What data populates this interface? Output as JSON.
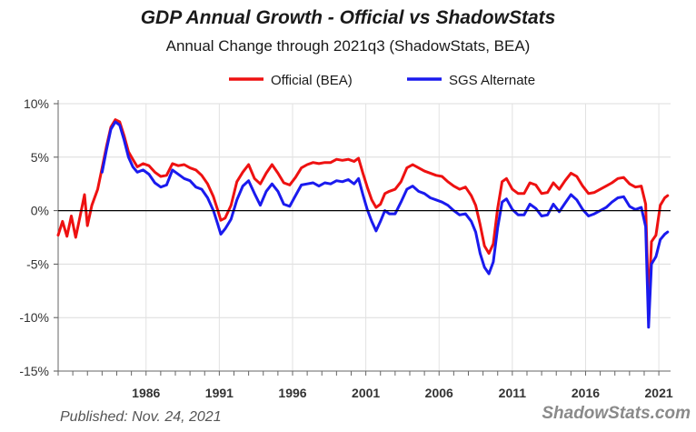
{
  "chart_data": {
    "type": "line",
    "title": "GDP Annual Growth - Official vs ShadowStats",
    "subtitle": "Annual Change through 2021q3  (ShadowStats, BEA)",
    "footer": "Published: Nov. 24, 2021",
    "brand": "ShadowStats.com",
    "xlim": [
      1980,
      2021.8
    ],
    "ylim": [
      -15,
      10
    ],
    "yticks": [
      10,
      5,
      0,
      -5,
      -10,
      -15
    ],
    "ytick_labels": [
      "10%",
      "5%",
      "0%",
      "-5%",
      "-10%",
      "-15%"
    ],
    "xticks": [
      1986,
      1991,
      1996,
      2001,
      2006,
      2011,
      2016,
      2021
    ],
    "xtick_labels": [
      "1986",
      "1991",
      "1996",
      "2001",
      "2006",
      "2011",
      "2016",
      "2021"
    ],
    "grid": true,
    "legend_position": "top",
    "series": [
      {
        "name": "Official (BEA)",
        "color": "#ee1111",
        "points": [
          [
            1980.0,
            -2.3
          ],
          [
            1980.3,
            -1.0
          ],
          [
            1980.6,
            -2.4
          ],
          [
            1980.9,
            -0.5
          ],
          [
            1981.2,
            -2.5
          ],
          [
            1981.5,
            -0.5
          ],
          [
            1981.8,
            1.5
          ],
          [
            1982.0,
            -1.4
          ],
          [
            1982.3,
            0.5
          ],
          [
            1982.7,
            2.0
          ],
          [
            1983.0,
            4.0
          ],
          [
            1983.3,
            6.0
          ],
          [
            1983.6,
            7.8
          ],
          [
            1983.9,
            8.5
          ],
          [
            1984.2,
            8.3
          ],
          [
            1984.5,
            7.0
          ],
          [
            1984.8,
            5.5
          ],
          [
            1985.1,
            4.8
          ],
          [
            1985.4,
            4.1
          ],
          [
            1985.8,
            4.4
          ],
          [
            1986.2,
            4.2
          ],
          [
            1986.6,
            3.6
          ],
          [
            1987.0,
            3.2
          ],
          [
            1987.4,
            3.3
          ],
          [
            1987.8,
            4.4
          ],
          [
            1988.2,
            4.2
          ],
          [
            1988.6,
            4.3
          ],
          [
            1989.0,
            4.0
          ],
          [
            1989.4,
            3.8
          ],
          [
            1989.8,
            3.3
          ],
          [
            1990.2,
            2.5
          ],
          [
            1990.6,
            1.3
          ],
          [
            1990.9,
            0.0
          ],
          [
            1991.1,
            -0.9
          ],
          [
            1991.4,
            -0.7
          ],
          [
            1991.8,
            0.5
          ],
          [
            1992.2,
            2.7
          ],
          [
            1992.6,
            3.6
          ],
          [
            1993.0,
            4.3
          ],
          [
            1993.4,
            3.0
          ],
          [
            1993.8,
            2.5
          ],
          [
            1994.2,
            3.5
          ],
          [
            1994.6,
            4.3
          ],
          [
            1995.0,
            3.5
          ],
          [
            1995.4,
            2.6
          ],
          [
            1995.8,
            2.4
          ],
          [
            1996.2,
            3.1
          ],
          [
            1996.6,
            4.0
          ],
          [
            1997.0,
            4.3
          ],
          [
            1997.4,
            4.5
          ],
          [
            1997.8,
            4.4
          ],
          [
            1998.2,
            4.5
          ],
          [
            1998.6,
            4.5
          ],
          [
            1999.0,
            4.8
          ],
          [
            1999.4,
            4.7
          ],
          [
            1999.8,
            4.8
          ],
          [
            2000.2,
            4.6
          ],
          [
            2000.5,
            4.9
          ],
          [
            2000.8,
            3.5
          ],
          [
            2001.1,
            2.2
          ],
          [
            2001.4,
            1.0
          ],
          [
            2001.7,
            0.3
          ],
          [
            2002.0,
            0.6
          ],
          [
            2002.3,
            1.6
          ],
          [
            2002.6,
            1.8
          ],
          [
            2003.0,
            2.0
          ],
          [
            2003.4,
            2.7
          ],
          [
            2003.8,
            4.0
          ],
          [
            2004.2,
            4.3
          ],
          [
            2004.6,
            4.0
          ],
          [
            2005.0,
            3.7
          ],
          [
            2005.4,
            3.5
          ],
          [
            2005.8,
            3.3
          ],
          [
            2006.2,
            3.2
          ],
          [
            2006.6,
            2.7
          ],
          [
            2007.0,
            2.3
          ],
          [
            2007.4,
            2.0
          ],
          [
            2007.8,
            2.2
          ],
          [
            2008.2,
            1.4
          ],
          [
            2008.5,
            0.5
          ],
          [
            2008.8,
            -1.3
          ],
          [
            2009.1,
            -3.3
          ],
          [
            2009.4,
            -4.0
          ],
          [
            2009.7,
            -3.1
          ],
          [
            2010.0,
            0.2
          ],
          [
            2010.3,
            2.7
          ],
          [
            2010.6,
            3.0
          ],
          [
            2011.0,
            2.0
          ],
          [
            2011.4,
            1.6
          ],
          [
            2011.8,
            1.6
          ],
          [
            2012.2,
            2.6
          ],
          [
            2012.6,
            2.4
          ],
          [
            2013.0,
            1.6
          ],
          [
            2013.4,
            1.7
          ],
          [
            2013.8,
            2.6
          ],
          [
            2014.2,
            2.0
          ],
          [
            2014.6,
            2.8
          ],
          [
            2015.0,
            3.5
          ],
          [
            2015.4,
            3.2
          ],
          [
            2015.8,
            2.3
          ],
          [
            2016.2,
            1.6
          ],
          [
            2016.6,
            1.7
          ],
          [
            2017.0,
            2.0
          ],
          [
            2017.4,
            2.3
          ],
          [
            2017.8,
            2.6
          ],
          [
            2018.2,
            3.0
          ],
          [
            2018.6,
            3.1
          ],
          [
            2019.0,
            2.5
          ],
          [
            2019.4,
            2.2
          ],
          [
            2019.8,
            2.3
          ],
          [
            2020.1,
            0.6
          ],
          [
            2020.3,
            -9.1
          ],
          [
            2020.5,
            -2.9
          ],
          [
            2020.8,
            -2.3
          ],
          [
            2021.1,
            0.5
          ],
          [
            2021.4,
            1.2
          ],
          [
            2021.6,
            1.4
          ]
        ]
      },
      {
        "name": "SGS Alternate",
        "color": "#1a1aee",
        "points": [
          [
            1983.0,
            3.6
          ],
          [
            1983.3,
            5.7
          ],
          [
            1983.6,
            7.6
          ],
          [
            1983.9,
            8.3
          ],
          [
            1984.2,
            8.0
          ],
          [
            1984.5,
            6.6
          ],
          [
            1984.8,
            5.0
          ],
          [
            1985.1,
            4.1
          ],
          [
            1985.4,
            3.6
          ],
          [
            1985.8,
            3.8
          ],
          [
            1986.2,
            3.4
          ],
          [
            1986.6,
            2.6
          ],
          [
            1987.0,
            2.2
          ],
          [
            1987.4,
            2.4
          ],
          [
            1987.8,
            3.8
          ],
          [
            1988.2,
            3.4
          ],
          [
            1988.6,
            3.0
          ],
          [
            1989.0,
            2.8
          ],
          [
            1989.4,
            2.2
          ],
          [
            1989.8,
            2.0
          ],
          [
            1990.2,
            1.2
          ],
          [
            1990.6,
            0.0
          ],
          [
            1990.9,
            -1.3
          ],
          [
            1991.1,
            -2.2
          ],
          [
            1991.4,
            -1.7
          ],
          [
            1991.8,
            -0.8
          ],
          [
            1992.2,
            1.0
          ],
          [
            1992.6,
            2.3
          ],
          [
            1993.0,
            2.8
          ],
          [
            1993.4,
            1.6
          ],
          [
            1993.8,
            0.5
          ],
          [
            1994.2,
            1.8
          ],
          [
            1994.6,
            2.5
          ],
          [
            1995.0,
            1.8
          ],
          [
            1995.4,
            0.6
          ],
          [
            1995.8,
            0.4
          ],
          [
            1996.2,
            1.4
          ],
          [
            1996.6,
            2.4
          ],
          [
            1997.0,
            2.5
          ],
          [
            1997.4,
            2.6
          ],
          [
            1997.8,
            2.3
          ],
          [
            1998.2,
            2.6
          ],
          [
            1998.6,
            2.5
          ],
          [
            1999.0,
            2.8
          ],
          [
            1999.4,
            2.7
          ],
          [
            1999.8,
            2.9
          ],
          [
            2000.2,
            2.5
          ],
          [
            2000.5,
            3.0
          ],
          [
            2000.8,
            1.5
          ],
          [
            2001.1,
            0.1
          ],
          [
            2001.4,
            -1.0
          ],
          [
            2001.7,
            -1.9
          ],
          [
            2002.0,
            -1.0
          ],
          [
            2002.3,
            0.0
          ],
          [
            2002.6,
            -0.3
          ],
          [
            2003.0,
            -0.3
          ],
          [
            2003.4,
            0.8
          ],
          [
            2003.8,
            2.0
          ],
          [
            2004.2,
            2.3
          ],
          [
            2004.6,
            1.8
          ],
          [
            2005.0,
            1.6
          ],
          [
            2005.4,
            1.2
          ],
          [
            2005.8,
            1.0
          ],
          [
            2006.2,
            0.8
          ],
          [
            2006.6,
            0.5
          ],
          [
            2007.0,
            0.0
          ],
          [
            2007.4,
            -0.4
          ],
          [
            2007.8,
            -0.3
          ],
          [
            2008.2,
            -1.0
          ],
          [
            2008.5,
            -2.0
          ],
          [
            2008.8,
            -4.0
          ],
          [
            2009.1,
            -5.3
          ],
          [
            2009.4,
            -5.9
          ],
          [
            2009.7,
            -4.8
          ],
          [
            2010.0,
            -1.6
          ],
          [
            2010.3,
            0.8
          ],
          [
            2010.6,
            1.1
          ],
          [
            2011.0,
            0.1
          ],
          [
            2011.4,
            -0.4
          ],
          [
            2011.8,
            -0.4
          ],
          [
            2012.2,
            0.6
          ],
          [
            2012.6,
            0.2
          ],
          [
            2013.0,
            -0.5
          ],
          [
            2013.4,
            -0.4
          ],
          [
            2013.8,
            0.6
          ],
          [
            2014.2,
            -0.1
          ],
          [
            2014.6,
            0.7
          ],
          [
            2015.0,
            1.5
          ],
          [
            2015.4,
            1.0
          ],
          [
            2015.8,
            0.1
          ],
          [
            2016.2,
            -0.5
          ],
          [
            2016.6,
            -0.3
          ],
          [
            2017.0,
            0.0
          ],
          [
            2017.4,
            0.3
          ],
          [
            2017.8,
            0.8
          ],
          [
            2018.2,
            1.2
          ],
          [
            2018.6,
            1.3
          ],
          [
            2019.0,
            0.4
          ],
          [
            2019.4,
            0.1
          ],
          [
            2019.8,
            0.3
          ],
          [
            2020.1,
            -1.5
          ],
          [
            2020.3,
            -10.9
          ],
          [
            2020.5,
            -5.0
          ],
          [
            2020.8,
            -4.3
          ],
          [
            2021.1,
            -2.7
          ],
          [
            2021.4,
            -2.2
          ],
          [
            2021.6,
            -2.0
          ]
        ]
      }
    ]
  }
}
